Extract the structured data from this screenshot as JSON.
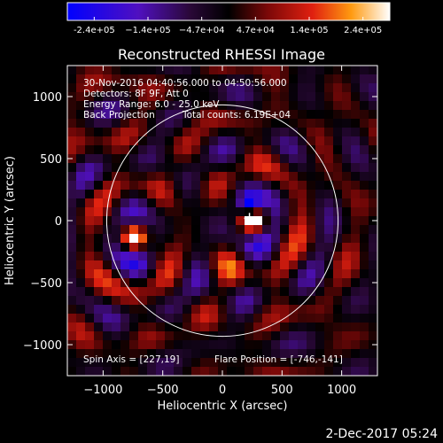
{
  "colorbar": {
    "min": -240000,
    "max": 240000,
    "tick_labels": [
      "-2.4e+05",
      "−1.4e+05",
      "−4.7e+04",
      "4.7e+04",
      "1.4e+05",
      "2.4e+05"
    ]
  },
  "title": "Reconstructed RHESSI Image",
  "footer_date": "2-Dec-2017 05:24",
  "info_lines": [
    "30-Nov-2016 04:40:56.000 to 04:50:56.000",
    "Detectors: 8F 9F, Att 0",
    "Energy Range: 6.0 - 25.0 keV",
    "Back Projection"
  ],
  "total_counts": "Total counts: 6.19E+04",
  "spin_axis": "Spin Axis = [227,19]",
  "flare_position": "Flare Position = [-746,-141]",
  "chart_data": {
    "type": "heatmap",
    "title": "Reconstructed RHESSI Image",
    "xlabel": "Heliocentric X (arcsec)",
    "ylabel": "Heliocentric Y (arcsec)",
    "xlim": [
      -1300,
      1300
    ],
    "ylim": [
      -1250,
      1250
    ],
    "x_ticks": [
      -1000,
      -500,
      0,
      500,
      1000
    ],
    "x_tick_labels": [
      "−1000",
      "−500",
      "0",
      "500",
      "1000"
    ],
    "y_ticks": [
      -1000,
      -500,
      0,
      500,
      1000
    ],
    "y_tick_labels": [
      "−1000",
      "−500",
      "0",
      "500",
      "1000"
    ],
    "solar_limb_radius_arcsec": 970,
    "sources": [
      {
        "x": -746,
        "y": -141,
        "kind": "bright"
      },
      {
        "x": 265,
        "y": 5,
        "kind": "bright"
      },
      {
        "x": 225,
        "y": 120,
        "kind": "dark"
      }
    ],
    "marker": {
      "x": 227,
      "y": 19,
      "symbol": "+"
    }
  }
}
